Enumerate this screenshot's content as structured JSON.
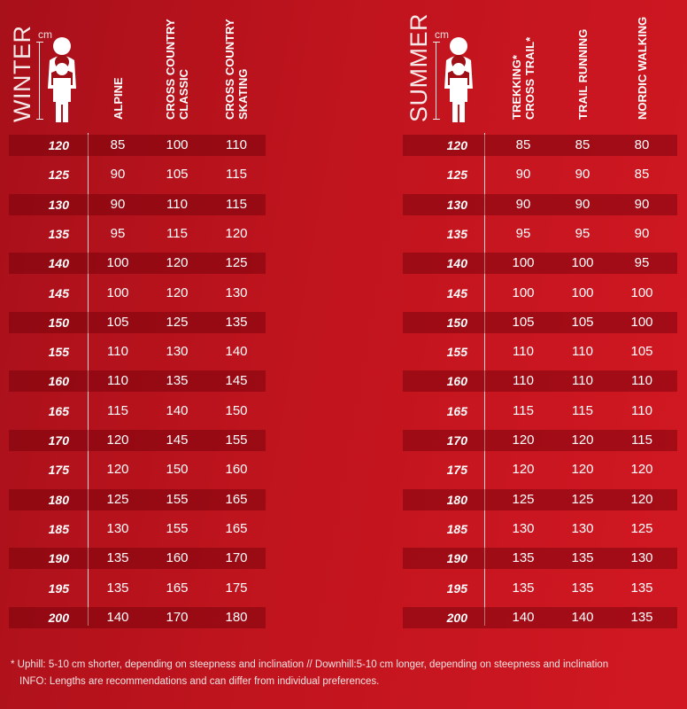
{
  "winter": {
    "title": "WINTER",
    "unit": "cm",
    "columns": [
      "ALPINE",
      "CROSS COUNTRY\nCLASSIC",
      "CROSS COUNTRY\nSKATING"
    ],
    "rows": [
      [
        "120",
        "85",
        "100",
        "110"
      ],
      [
        "125",
        "90",
        "105",
        "115"
      ],
      [
        "130",
        "90",
        "110",
        "115"
      ],
      [
        "135",
        "95",
        "115",
        "120"
      ],
      [
        "140",
        "100",
        "120",
        "125"
      ],
      [
        "145",
        "100",
        "120",
        "130"
      ],
      [
        "150",
        "105",
        "125",
        "135"
      ],
      [
        "155",
        "110",
        "130",
        "140"
      ],
      [
        "160",
        "110",
        "135",
        "145"
      ],
      [
        "165",
        "115",
        "140",
        "150"
      ],
      [
        "170",
        "120",
        "145",
        "155"
      ],
      [
        "175",
        "120",
        "150",
        "160"
      ],
      [
        "180",
        "125",
        "155",
        "165"
      ],
      [
        "185",
        "130",
        "155",
        "165"
      ],
      [
        "190",
        "135",
        "160",
        "170"
      ],
      [
        "195",
        "135",
        "165",
        "175"
      ],
      [
        "200",
        "140",
        "170",
        "180"
      ]
    ]
  },
  "summer": {
    "title": "SUMMER",
    "unit": "cm",
    "columns": [
      "TREKKING*\nCROSS TRAIL*",
      "TRAIL RUNNING",
      "NORDIC WALKING"
    ],
    "rows": [
      [
        "120",
        "85",
        "85",
        "80"
      ],
      [
        "125",
        "90",
        "90",
        "85"
      ],
      [
        "130",
        "90",
        "90",
        "90"
      ],
      [
        "135",
        "95",
        "95",
        "90"
      ],
      [
        "140",
        "100",
        "100",
        "95"
      ],
      [
        "145",
        "100",
        "100",
        "100"
      ],
      [
        "150",
        "105",
        "105",
        "100"
      ],
      [
        "155",
        "110",
        "110",
        "105"
      ],
      [
        "160",
        "110",
        "110",
        "110"
      ],
      [
        "165",
        "115",
        "115",
        "110"
      ],
      [
        "170",
        "120",
        "120",
        "115"
      ],
      [
        "175",
        "120",
        "120",
        "120"
      ],
      [
        "180",
        "125",
        "125",
        "120"
      ],
      [
        "185",
        "130",
        "130",
        "125"
      ],
      [
        "190",
        "135",
        "135",
        "130"
      ],
      [
        "195",
        "135",
        "135",
        "135"
      ],
      [
        "200",
        "140",
        "140",
        "135"
      ]
    ]
  },
  "footnotes": {
    "line1": "* Uphill: 5-10 cm shorter, depending on steepness and inclination // Downhill:5-10 cm longer, depending on steepness and inclination",
    "line2": "INFO: Lengths are recommendations and can differ from individual preferences."
  },
  "colors": {
    "background": "#c0141e",
    "stripe": "#8e0d14",
    "text": "#ffffff"
  },
  "icons": [
    "person-height-icon"
  ]
}
